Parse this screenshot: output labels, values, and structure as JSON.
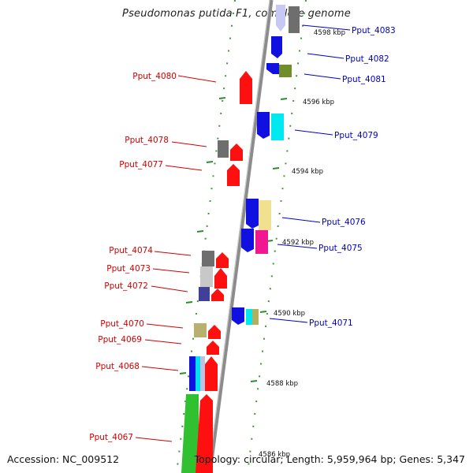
{
  "title": "Pseudomonas putida F1, complete genome",
  "accession": "Accession: NC_009512",
  "summary": "Topology: circular; Length: 5,959,964 bp; Genes: 5,347",
  "colors": {
    "backbone": "#8c8c8c",
    "tick": "#3a9a3a",
    "left_label": "#d40000",
    "right_label": "#0000c8",
    "scale_text": "#111111"
  },
  "scale_labels": [
    "4598 kbp",
    "4596 kbp",
    "4594 kbp",
    "4592 kbp",
    "4590 kbp",
    "4588 kbp",
    "4586 kbp"
  ],
  "left_labels": [
    "Pput_4080",
    "Pput_4078",
    "Pput_4077",
    "Pput_4074",
    "Pput_4073",
    "Pput_4072",
    "Pput_4070",
    "Pput_4069",
    "Pput_4068",
    "Pput_4067"
  ],
  "right_labels": [
    "Pput_4083",
    "Pput_4082",
    "Pput_4081",
    "Pput_4079",
    "Pput_4076",
    "Pput_4075",
    "Pput_4071"
  ]
}
